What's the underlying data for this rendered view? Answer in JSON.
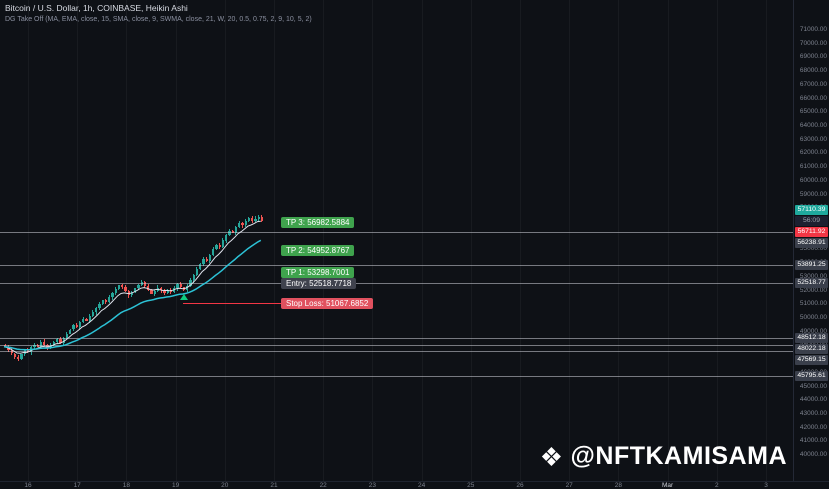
{
  "header": {
    "symbol_title": "Bitcoin / U.S. Dollar, 1h, COINBASE, Heikin Ashi",
    "indicator_title": "DG Take Off (MA, EMA, close, 15, SMA, close, 9, SWMA, close, 21, W, 20, 0.5, 0.75, 2, 9, 10, 5, 2)"
  },
  "watermark": {
    "icon": "❖",
    "handle": "@NFTKAMISAMA"
  },
  "theme": {
    "background": "#0e1116",
    "up_color": "#26a69a",
    "down_color": "#ef5350",
    "ma_fast": "#dfe3ec",
    "ma_slow": "#2cc2d6",
    "tp_bg": "#3fa34d",
    "entry_bg": "#40434e",
    "sl_bg": "#e0515f",
    "sl_color": "#f23645",
    "current_bg": "#1fa99d",
    "alert_bg": "#f23645",
    "badge_bg": "#3a3f4b"
  },
  "price_axis": {
    "current": "57110.39",
    "countdown": "56:09",
    "alert": "56711.92",
    "ticks": [
      "71000.00",
      "70000.00",
      "69000.00",
      "68000.00",
      "67000.00",
      "66000.00",
      "65000.00",
      "64000.00",
      "63000.00",
      "62000.00",
      "61000.00",
      "60000.00",
      "59000.00",
      "58000.00",
      "57000.00",
      "56000.00",
      "55000.00",
      "54000.00",
      "53000.00",
      "52000.00",
      "51000.00",
      "50000.00",
      "49000.00",
      "48000.00",
      "47000.00",
      "46000.00",
      "45000.00",
      "44000.00",
      "43000.00",
      "42000.00",
      "41000.00",
      "40000.00"
    ]
  },
  "chart_data": {
    "type": "candlestick",
    "title": "Bitcoin / U.S. Dollar",
    "interval": "1h",
    "exchange": "COINBASE",
    "style": "Heikin Ashi",
    "ylim": [
      40000,
      71000
    ],
    "x_labels": [
      "16",
      "17",
      "18",
      "19",
      "20",
      "21",
      "22",
      "23",
      "24",
      "25",
      "26",
      "27",
      "28",
      "Mar",
      "2",
      "3"
    ],
    "closes": [
      47900,
      47650,
      47400,
      47150,
      47000,
      47350,
      47650,
      47500,
      47850,
      48050,
      47900,
      48250,
      48050,
      47800,
      48000,
      48250,
      48450,
      48200,
      48550,
      48850,
      49150,
      49450,
      49350,
      49700,
      49950,
      49800,
      50150,
      50400,
      50700,
      51000,
      51300,
      51150,
      51500,
      51800,
      52100,
      52400,
      52250,
      51950,
      51650,
      51850,
      52150,
      52400,
      52600,
      52350,
      52050,
      51750,
      51950,
      52200,
      52000,
      51800,
      52050,
      51900,
      52150,
      52450,
      52250,
      52000,
      52350,
      52750,
      53150,
      53550,
      53950,
      54300,
      54150,
      54600,
      55000,
      55350,
      55200,
      55650,
      56050,
      56350,
      56200,
      56600,
      56900,
      56750,
      57050,
      57300,
      57050,
      57250,
      57400,
      57110
    ],
    "current_price": 57110.39,
    "levels": [
      {
        "price": 56238.91,
        "label": "56238.91"
      },
      {
        "price": 53891.25,
        "label": "53891.25"
      },
      {
        "price": 52518.77,
        "label": "52518.77"
      },
      {
        "price": 48512.18,
        "label": "48512.18"
      },
      {
        "price": 48022.18,
        "label": "48022.18"
      },
      {
        "price": 47569.15,
        "label": "47569.15"
      },
      {
        "price": 45795.61,
        "label": "45795.61"
      }
    ],
    "trade_labels": [
      {
        "text": "TP 3: 56982.5884",
        "price": 56982.5884,
        "type": "tp"
      },
      {
        "text": "TP 2: 54952.8767",
        "price": 54952.8767,
        "type": "tp"
      },
      {
        "text": "TP 1: 53298.7001",
        "price": 53298.7001,
        "type": "tp"
      },
      {
        "text": "Entry: 52518.7718",
        "price": 52518.7718,
        "type": "entry"
      },
      {
        "text": "Stop Loss: 51067.6852",
        "price": 51067.6852,
        "type": "sl"
      }
    ],
    "stop_line": {
      "price": 51067.6852,
      "from_index": 55,
      "to_x": 334
    },
    "signal_marker": {
      "index": 55,
      "shape": "triangle-up",
      "color": "#0ecb81"
    }
  }
}
